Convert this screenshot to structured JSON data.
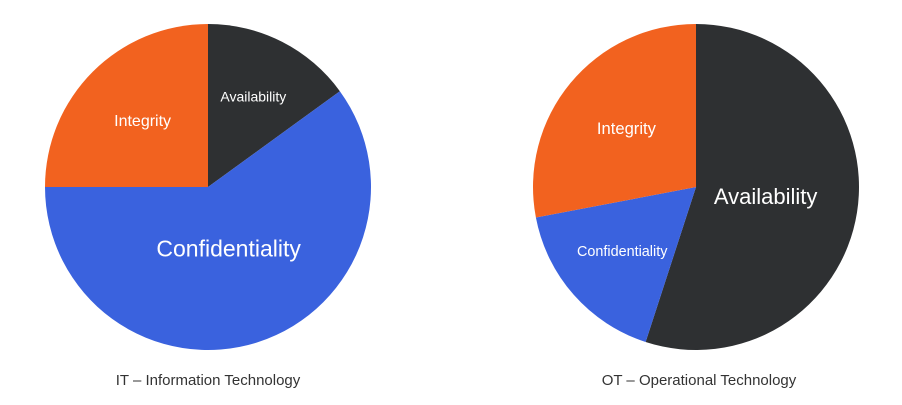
{
  "chart_data": [
    {
      "type": "pie",
      "title": "IT – Information Technology",
      "categories": [
        "Availability",
        "Confidentiality",
        "Integrity"
      ],
      "values": [
        15,
        60,
        25
      ],
      "colors": [
        "#2e3032",
        "#3a62de",
        "#f2621f"
      ]
    },
    {
      "type": "pie",
      "title": "OT – Operational Technology",
      "categories": [
        "Availability",
        "Confidentiality",
        "Integrity"
      ],
      "values": [
        55,
        17,
        28
      ],
      "colors": [
        "#2e3032",
        "#3a62de",
        "#f2621f"
      ]
    }
  ]
}
